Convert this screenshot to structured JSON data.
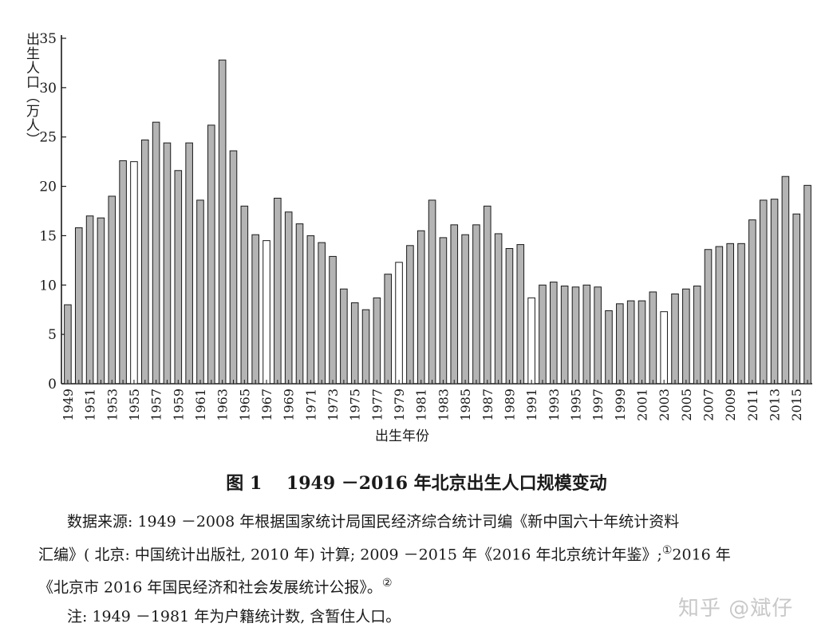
{
  "chart_data": {
    "type": "bar",
    "ylabel": "出生人口（万人）",
    "xlabel": "出生年份",
    "ylim": [
      0,
      35
    ],
    "yticks": [
      0,
      5,
      10,
      15,
      20,
      25,
      30,
      35
    ],
    "grid": false,
    "bar_colors": {
      "filled": "#b4b4b4",
      "hollow": "#ffffff",
      "edge": "#1a1a1a"
    },
    "categories": [
      "1949",
      "1950",
      "1951",
      "1952",
      "1953",
      "1954",
      "1955",
      "1956",
      "1957",
      "1958",
      "1959",
      "1960",
      "1961",
      "1962",
      "1963",
      "1964",
      "1965",
      "1966",
      "1967",
      "1968",
      "1969",
      "1970",
      "1971",
      "1972",
      "1973",
      "1974",
      "1975",
      "1976",
      "1977",
      "1978",
      "1979",
      "1980",
      "1981",
      "1982",
      "1983",
      "1984",
      "1985",
      "1986",
      "1987",
      "1988",
      "1989",
      "1990",
      "1991",
      "1992",
      "1993",
      "1994",
      "1995",
      "1996",
      "1997",
      "1998",
      "1999",
      "2000",
      "2001",
      "2002",
      "2003",
      "2004",
      "2005",
      "2006",
      "2007",
      "2008",
      "2009",
      "2010",
      "2011",
      "2012",
      "2013",
      "2014",
      "2015",
      "2016"
    ],
    "values": [
      8.0,
      15.8,
      17.0,
      16.8,
      19.0,
      22.6,
      22.5,
      24.7,
      26.5,
      24.4,
      21.6,
      24.4,
      18.6,
      26.2,
      32.8,
      23.6,
      18.0,
      15.1,
      14.5,
      18.8,
      17.4,
      16.2,
      15.0,
      14.3,
      12.9,
      9.6,
      8.2,
      7.5,
      8.7,
      11.1,
      12.3,
      14.0,
      15.5,
      18.6,
      14.8,
      16.1,
      15.1,
      16.1,
      18.0,
      15.2,
      13.7,
      14.1,
      8.7,
      10.0,
      10.3,
      9.9,
      9.8,
      10.0,
      9.8,
      7.4,
      8.1,
      8.4,
      8.4,
      9.3,
      7.3,
      9.1,
      9.6,
      9.9,
      13.6,
      13.9,
      14.2,
      14.2,
      16.6,
      18.6,
      18.7,
      21.0,
      17.2,
      20.1
    ],
    "hollow_years": [
      "1955",
      "1967",
      "1979",
      "1991",
      "2003"
    ],
    "tick_labels": [
      "1949",
      "1951",
      "1953",
      "1955",
      "1957",
      "1959",
      "1961",
      "1963",
      "1965",
      "1967",
      "1969",
      "1971",
      "1973",
      "1975",
      "1977",
      "1979",
      "1981",
      "1983",
      "1985",
      "1987",
      "1989",
      "1991",
      "1993",
      "1995",
      "1997",
      "1999",
      "2001",
      "2003",
      "2005",
      "2007",
      "2009",
      "2011",
      "2013",
      "2015"
    ]
  },
  "figure": {
    "title_num": "图 1",
    "title_text": "1949 －2016 年北京出生人口规模变动"
  },
  "notes": {
    "line1": "数据来源: 1949 －2008 年根据国家统计局国民经济综合统计司编《新中国六十年统计资料",
    "line2a": "汇编》( 北京: 中国统计出版社, 2010 年) 计算; 2009 －2015 年《2016 年北京统计年鉴》;",
    "sup1": "①",
    "line2b": "2016 年",
    "line3a": "《北京市 2016 年国民经济和社会发展统计公报》。",
    "sup2": "②",
    "line4": "注: 1949 －1981 年为户籍统计数, 含暂住人口。"
  },
  "watermark": "知乎 @斌仔"
}
